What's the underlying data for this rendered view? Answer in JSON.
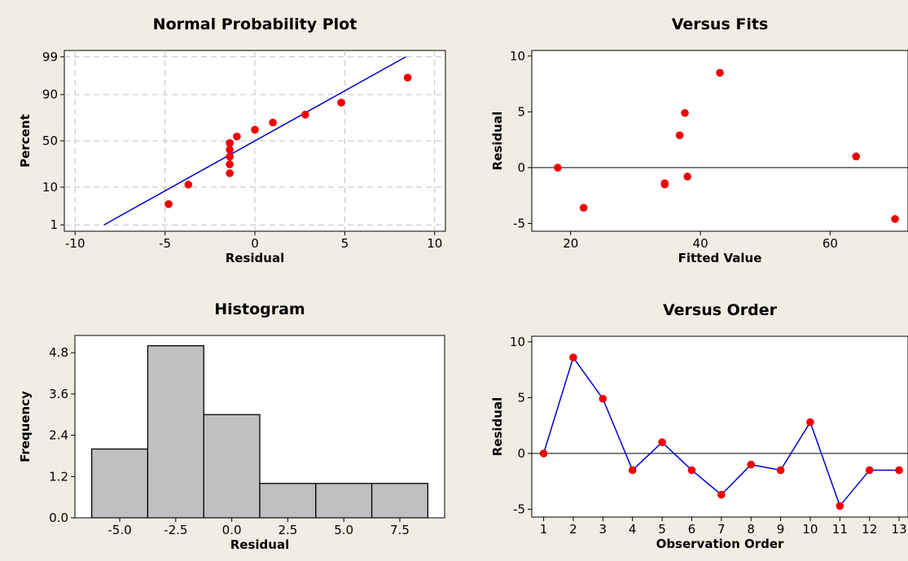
{
  "colors": {
    "background": "#f1ede4",
    "plot_area": "#ffffff",
    "point": "#ee0000",
    "line": "#0000cc",
    "bar_fill": "#c0c0c0",
    "grid": "#c0c0c0"
  },
  "chart_data": [
    {
      "id": "normal_probability",
      "type": "scatter",
      "title": "Normal Probability Plot",
      "xlabel": "Residual",
      "ylabel": "Percent",
      "xlim": [
        -10.6,
        10.6
      ],
      "y_scale": "normal-probability",
      "x_ticks": [
        -10,
        -5,
        0,
        5,
        10
      ],
      "y_ticks": [
        1,
        10,
        50,
        90,
        99
      ],
      "grid": true,
      "fit_line": {
        "x": [
          -8.4,
          8.4
        ],
        "y": [
          1,
          99
        ]
      },
      "points": [
        {
          "x": -4.8,
          "y": 4.0
        },
        {
          "x": -3.7,
          "y": 11.3
        },
        {
          "x": -1.4,
          "y": 18.5
        },
        {
          "x": -1.4,
          "y": 25.8
        },
        {
          "x": -1.4,
          "y": 33.1
        },
        {
          "x": -1.4,
          "y": 40.3
        },
        {
          "x": -1.4,
          "y": 47.6
        },
        {
          "x": -1.0,
          "y": 54.8
        },
        {
          "x": 0.0,
          "y": 62.1
        },
        {
          "x": 1.0,
          "y": 69.4
        },
        {
          "x": 2.8,
          "y": 76.6
        },
        {
          "x": 4.8,
          "y": 85.5
        },
        {
          "x": 8.5,
          "y": 96.0
        }
      ]
    },
    {
      "id": "versus_fits",
      "type": "scatter",
      "title": "Versus Fits",
      "xlabel": "Fitted Value",
      "ylabel": "Residual",
      "xlim": [
        14,
        72
      ],
      "ylim": [
        -5.7,
        10.5
      ],
      "x_ticks": [
        20,
        40,
        60
      ],
      "y_ticks": [
        -5,
        0,
        5,
        10
      ],
      "reference_line": 0,
      "points": [
        {
          "x": 18,
          "y": 0.0
        },
        {
          "x": 22,
          "y": -3.6
        },
        {
          "x": 34.5,
          "y": -1.4
        },
        {
          "x": 34.5,
          "y": -1.5
        },
        {
          "x": 36.8,
          "y": 2.9
        },
        {
          "x": 37.6,
          "y": 4.9
        },
        {
          "x": 38.0,
          "y": -0.8
        },
        {
          "x": 43.0,
          "y": 8.5
        },
        {
          "x": 64.0,
          "y": 1.0
        },
        {
          "x": 70.0,
          "y": -4.6
        }
      ]
    },
    {
      "id": "histogram",
      "type": "bar",
      "title": "Histogram",
      "xlabel": "Residual",
      "ylabel": "Frequency",
      "xlim": [
        -7.0,
        9.5
      ],
      "ylim": [
        0,
        5.3
      ],
      "x_ticks": [
        -5.0,
        -2.5,
        0.0,
        2.5,
        5.0,
        7.5
      ],
      "x_tick_labels": [
        "-5.0",
        "-2.5",
        "0.0",
        "2.5",
        "5.0",
        "7.5"
      ],
      "y_ticks": [
        0.0,
        1.2,
        2.4,
        3.6,
        4.8
      ],
      "y_tick_labels": [
        "0.0",
        "1.2",
        "2.4",
        "3.6",
        "4.8"
      ],
      "bins": [
        {
          "from": -6.25,
          "to": -3.75,
          "count": 2
        },
        {
          "from": -3.75,
          "to": -1.25,
          "count": 5
        },
        {
          "from": -1.25,
          "to": 1.25,
          "count": 3
        },
        {
          "from": 1.25,
          "to": 3.75,
          "count": 1
        },
        {
          "from": 3.75,
          "to": 6.25,
          "count": 1
        },
        {
          "from": 6.25,
          "to": 8.75,
          "count": 1
        }
      ]
    },
    {
      "id": "versus_order",
      "type": "line",
      "title": "Versus Order",
      "xlabel": "Observation Order",
      "ylabel": "Residual",
      "xlim": [
        0.6,
        13.3
      ],
      "ylim": [
        -5.7,
        10.5
      ],
      "x_ticks": [
        1,
        2,
        3,
        4,
        5,
        6,
        7,
        8,
        9,
        10,
        11,
        12,
        13
      ],
      "y_ticks": [
        -5,
        0,
        5,
        10
      ],
      "reference_line": 0,
      "x": [
        1,
        2,
        3,
        4,
        5,
        6,
        7,
        8,
        9,
        10,
        11,
        12,
        13
      ],
      "y": [
        0.0,
        8.6,
        4.9,
        -1.5,
        1.0,
        -1.5,
        -3.7,
        -1.0,
        -1.5,
        2.8,
        -4.7,
        -1.5,
        -1.5
      ]
    }
  ]
}
